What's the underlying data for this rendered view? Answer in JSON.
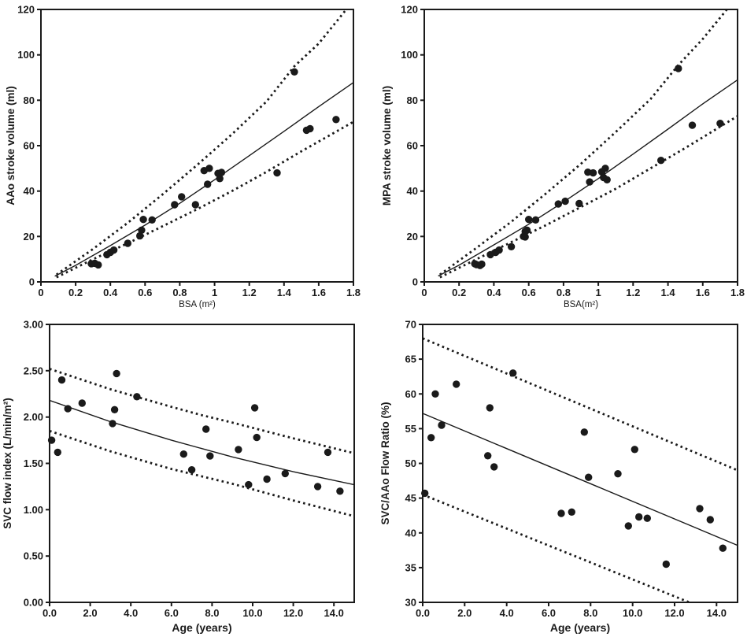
{
  "figure": {
    "background": "#ffffff",
    "ink_color": "#1a1a1a",
    "description": "Four-panel scatter plot figure with regression curves and dotted confidence bands"
  },
  "chart_data": [
    {
      "id": "aao-stroke-volume-vs-bsa",
      "type": "scatter",
      "title": "",
      "xlabel": "BSA (m²)",
      "ylabel": "AAo stroke volume (ml)",
      "xlim": [
        0,
        1.8
      ],
      "ylim": [
        0,
        120
      ],
      "xticks": [
        {
          "v": 0,
          "label": "0"
        },
        {
          "v": 0.2,
          "label": "0.2"
        },
        {
          "v": 0.4,
          "label": "0.4"
        },
        {
          "v": 0.6,
          "label": "0.6"
        },
        {
          "v": 0.8,
          "label": "0.8"
        },
        {
          "v": 1,
          "label": "1"
        },
        {
          "v": 1.2,
          "label": "1.2"
        },
        {
          "v": 1.4,
          "label": "1.4"
        },
        {
          "v": 1.6,
          "label": "1.6"
        },
        {
          "v": 1.8,
          "label": "1.8"
        }
      ],
      "yticks": [
        {
          "v": 0,
          "label": "0"
        },
        {
          "v": 20,
          "label": "20"
        },
        {
          "v": 40,
          "label": "40"
        },
        {
          "v": 60,
          "label": "60"
        },
        {
          "v": 80,
          "label": "80"
        },
        {
          "v": 100,
          "label": "100"
        },
        {
          "v": 120,
          "label": "120"
        }
      ],
      "points": [
        [
          0.29,
          8
        ],
        [
          0.31,
          8.2
        ],
        [
          0.33,
          7.5
        ],
        [
          0.38,
          12
        ],
        [
          0.4,
          13
        ],
        [
          0.42,
          14
        ],
        [
          0.5,
          17
        ],
        [
          0.57,
          20.3
        ],
        [
          0.58,
          22.8
        ],
        [
          0.59,
          27.5
        ],
        [
          0.64,
          27.3
        ],
        [
          0.77,
          34
        ],
        [
          0.81,
          37.5
        ],
        [
          0.89,
          34
        ],
        [
          0.94,
          49
        ],
        [
          0.96,
          43
        ],
        [
          0.97,
          50
        ],
        [
          1.02,
          47.8
        ],
        [
          1.03,
          45.5
        ],
        [
          1.04,
          48.2
        ],
        [
          1.36,
          48
        ],
        [
          1.46,
          92.5
        ],
        [
          1.53,
          66.8
        ],
        [
          1.55,
          67.5
        ],
        [
          1.7,
          71.5
        ]
      ],
      "fit_line": [
        [
          0.08,
          2.5
        ],
        [
          0.2,
          7.3
        ],
        [
          0.4,
          16.0
        ],
        [
          0.6,
          25.0
        ],
        [
          0.8,
          34.6
        ],
        [
          1.0,
          45.0
        ],
        [
          1.2,
          55.6
        ],
        [
          1.4,
          66.3
        ],
        [
          1.6,
          77.2
        ],
        [
          1.8,
          87.8
        ]
      ],
      "upper_band": [
        [
          0.09,
          3.2
        ],
        [
          0.3,
          14.5
        ],
        [
          0.5,
          26.0
        ],
        [
          0.7,
          38.5
        ],
        [
          0.9,
          51.5
        ],
        [
          1.1,
          65.0
        ],
        [
          1.3,
          79.5
        ],
        [
          1.46,
          95.0
        ],
        [
          1.6,
          105.0
        ],
        [
          1.78,
          122.0
        ]
      ],
      "lower_band": [
        [
          0.09,
          2.0
        ],
        [
          0.3,
          10.0
        ],
        [
          0.5,
          17.0
        ],
        [
          0.7,
          24.5
        ],
        [
          0.9,
          32.0
        ],
        [
          1.1,
          40.0
        ],
        [
          1.3,
          48.5
        ],
        [
          1.5,
          57.5
        ],
        [
          1.65,
          64.0
        ],
        [
          1.8,
          70.5
        ]
      ]
    },
    {
      "id": "mpa-stroke-volume-vs-bsa",
      "type": "scatter",
      "title": "",
      "xlabel": "BSA(m²)",
      "ylabel": "MPA stroke volume (ml)",
      "xlim": [
        0,
        1.8
      ],
      "ylim": [
        0,
        120
      ],
      "xticks": [
        {
          "v": 0,
          "label": "0"
        },
        {
          "v": 0.2,
          "label": "0.2"
        },
        {
          "v": 0.4,
          "label": "0.4"
        },
        {
          "v": 0.6,
          "label": "0.6"
        },
        {
          "v": 0.8,
          "label": "0.8"
        },
        {
          "v": 1,
          "label": "1"
        },
        {
          "v": 1.2,
          "label": "1.2"
        },
        {
          "v": 1.4,
          "label": "1.4"
        },
        {
          "v": 1.6,
          "label": "1.6"
        },
        {
          "v": 1.8,
          "label": "1.8"
        }
      ],
      "yticks": [
        {
          "v": 0,
          "label": "0"
        },
        {
          "v": 20,
          "label": "20"
        },
        {
          "v": 40,
          "label": "40"
        },
        {
          "v": 60,
          "label": "60"
        },
        {
          "v": 80,
          "label": "80"
        },
        {
          "v": 100,
          "label": "100"
        },
        {
          "v": 120,
          "label": "120"
        }
      ],
      "points": [
        [
          0.29,
          8
        ],
        [
          0.3,
          7.6
        ],
        [
          0.32,
          7.2
        ],
        [
          0.33,
          7.8
        ],
        [
          0.38,
          12
        ],
        [
          0.41,
          13
        ],
        [
          0.43,
          14
        ],
        [
          0.5,
          15.5
        ],
        [
          0.57,
          20
        ],
        [
          0.58,
          19.8
        ],
        [
          0.58,
          22.2
        ],
        [
          0.59,
          22.8
        ],
        [
          0.6,
          27.5
        ],
        [
          0.64,
          27.3
        ],
        [
          0.77,
          34.3
        ],
        [
          0.81,
          35.5
        ],
        [
          0.89,
          34.5
        ],
        [
          0.94,
          48.3
        ],
        [
          0.95,
          44
        ],
        [
          0.97,
          48
        ],
        [
          1.02,
          48.5
        ],
        [
          1.03,
          46
        ],
        [
          1.04,
          50
        ],
        [
          1.05,
          45
        ],
        [
          1.36,
          53.5
        ],
        [
          1.46,
          94
        ],
        [
          1.54,
          69
        ],
        [
          1.7,
          69.8
        ]
      ],
      "fit_line": [
        [
          0.08,
          2.6
        ],
        [
          0.2,
          7.4
        ],
        [
          0.4,
          16.3
        ],
        [
          0.6,
          25.4
        ],
        [
          0.8,
          35.2
        ],
        [
          1.0,
          45.5
        ],
        [
          1.2,
          56.3
        ],
        [
          1.4,
          67.3
        ],
        [
          1.6,
          78.4
        ],
        [
          1.8,
          89.0
        ]
      ],
      "upper_band": [
        [
          0.09,
          3.2
        ],
        [
          0.3,
          15.0
        ],
        [
          0.5,
          26.5
        ],
        [
          0.7,
          39.0
        ],
        [
          0.9,
          52.0
        ],
        [
          1.1,
          66.0
        ],
        [
          1.3,
          80.5
        ],
        [
          1.46,
          95.5
        ],
        [
          1.6,
          107.0
        ],
        [
          1.76,
          122.0
        ]
      ],
      "lower_band": [
        [
          0.09,
          2.0
        ],
        [
          0.3,
          10.0
        ],
        [
          0.5,
          17.5
        ],
        [
          0.7,
          25.0
        ],
        [
          0.9,
          33.0
        ],
        [
          1.1,
          41.0
        ],
        [
          1.3,
          50.0
        ],
        [
          1.5,
          59.0
        ],
        [
          1.65,
          66.0
        ],
        [
          1.8,
          73.0
        ]
      ]
    },
    {
      "id": "svc-flow-index-vs-age",
      "type": "scatter",
      "title": "",
      "xlabel": "Age (years)",
      "ylabel": "SVC flow index (L/min/m²)",
      "xlim": [
        0,
        15
      ],
      "ylim": [
        0,
        3
      ],
      "xticks": [
        {
          "v": 0,
          "label": "0.0"
        },
        {
          "v": 2,
          "label": "2.0"
        },
        {
          "v": 4,
          "label": "4.0"
        },
        {
          "v": 6,
          "label": "6.0"
        },
        {
          "v": 8,
          "label": "8.0"
        },
        {
          "v": 10,
          "label": "10.0"
        },
        {
          "v": 12,
          "label": "12.0"
        },
        {
          "v": 14,
          "label": "14.0"
        }
      ],
      "yticks": [
        {
          "v": 0,
          "label": "0.00"
        },
        {
          "v": 0.5,
          "label": "0.50"
        },
        {
          "v": 1,
          "label": "1.00"
        },
        {
          "v": 1.5,
          "label": "1.50"
        },
        {
          "v": 2,
          "label": "2.00"
        },
        {
          "v": 2.5,
          "label": "2.50"
        },
        {
          "v": 3,
          "label": "3.00"
        }
      ],
      "points": [
        [
          0.1,
          1.75
        ],
        [
          0.4,
          1.62
        ],
        [
          0.6,
          2.4
        ],
        [
          0.9,
          2.09
        ],
        [
          1.6,
          2.15
        ],
        [
          3.1,
          1.93
        ],
        [
          3.2,
          2.08
        ],
        [
          3.3,
          2.47
        ],
        [
          4.3,
          2.22
        ],
        [
          6.6,
          1.6
        ],
        [
          7.0,
          1.43
        ],
        [
          7.7,
          1.87
        ],
        [
          7.9,
          1.58
        ],
        [
          9.3,
          1.65
        ],
        [
          9.8,
          1.27
        ],
        [
          10.1,
          2.1
        ],
        [
          10.2,
          1.78
        ],
        [
          10.7,
          1.33
        ],
        [
          11.6,
          1.39
        ],
        [
          13.2,
          1.25
        ],
        [
          13.7,
          1.62
        ],
        [
          14.3,
          1.2
        ]
      ],
      "fit_line": [
        [
          0,
          2.18
        ],
        [
          3,
          1.95
        ],
        [
          6,
          1.75
        ],
        [
          7.5,
          1.66
        ],
        [
          9,
          1.57
        ],
        [
          12,
          1.41
        ],
        [
          15,
          1.27
        ]
      ],
      "upper_band": [
        [
          0,
          2.52
        ],
        [
          3,
          2.3
        ],
        [
          6,
          2.11
        ],
        [
          7.5,
          2.02
        ],
        [
          9,
          1.94
        ],
        [
          12,
          1.77
        ],
        [
          15,
          1.61
        ]
      ],
      "lower_band": [
        [
          0,
          1.85
        ],
        [
          3,
          1.63
        ],
        [
          6,
          1.44
        ],
        [
          7.5,
          1.36
        ],
        [
          9,
          1.28
        ],
        [
          12,
          1.1
        ],
        [
          15,
          0.93
        ]
      ]
    },
    {
      "id": "svc-aao-flow-ratio-vs-age",
      "type": "scatter",
      "title": "",
      "xlabel": "Age (years)",
      "ylabel": "SVC/AAo Flow Ratio (%)",
      "xlim": [
        0,
        15
      ],
      "ylim": [
        30,
        70
      ],
      "xticks": [
        {
          "v": 0,
          "label": "0.0"
        },
        {
          "v": 2,
          "label": "2.0"
        },
        {
          "v": 4,
          "label": "4.0"
        },
        {
          "v": 6,
          "label": "6.0"
        },
        {
          "v": 8,
          "label": "8.0"
        },
        {
          "v": 10,
          "label": "10.0"
        },
        {
          "v": 12,
          "label": "12.0"
        },
        {
          "v": 14,
          "label": "14.0"
        }
      ],
      "yticks": [
        {
          "v": 30,
          "label": "30"
        },
        {
          "v": 35,
          "label": "35"
        },
        {
          "v": 40,
          "label": "40"
        },
        {
          "v": 45,
          "label": "45"
        },
        {
          "v": 50,
          "label": "50"
        },
        {
          "v": 55,
          "label": "55"
        },
        {
          "v": 60,
          "label": "60"
        },
        {
          "v": 65,
          "label": "65"
        },
        {
          "v": 70,
          "label": "70"
        }
      ],
      "points": [
        [
          0.1,
          45.7
        ],
        [
          0.4,
          53.7
        ],
        [
          0.6,
          60.0
        ],
        [
          0.9,
          55.5
        ],
        [
          1.6,
          61.4
        ],
        [
          3.1,
          51.1
        ],
        [
          3.2,
          58.0
        ],
        [
          3.4,
          49.5
        ],
        [
          4.3,
          63.0
        ],
        [
          6.6,
          42.8
        ],
        [
          7.1,
          43.0
        ],
        [
          7.7,
          54.5
        ],
        [
          7.9,
          48.0
        ],
        [
          9.3,
          48.5
        ],
        [
          9.8,
          41.0
        ],
        [
          10.1,
          52.0
        ],
        [
          10.3,
          42.3
        ],
        [
          10.7,
          42.1
        ],
        [
          11.6,
          35.5
        ],
        [
          13.2,
          43.5
        ],
        [
          13.7,
          41.9
        ],
        [
          14.3,
          37.8
        ]
      ],
      "fit_line": [
        [
          0,
          57.2
        ],
        [
          15,
          38.2
        ]
      ],
      "upper_band": [
        [
          0,
          68.0
        ],
        [
          15,
          49.0
        ]
      ],
      "lower_band": [
        [
          0,
          45.5
        ],
        [
          15,
          27.2
        ]
      ]
    }
  ]
}
